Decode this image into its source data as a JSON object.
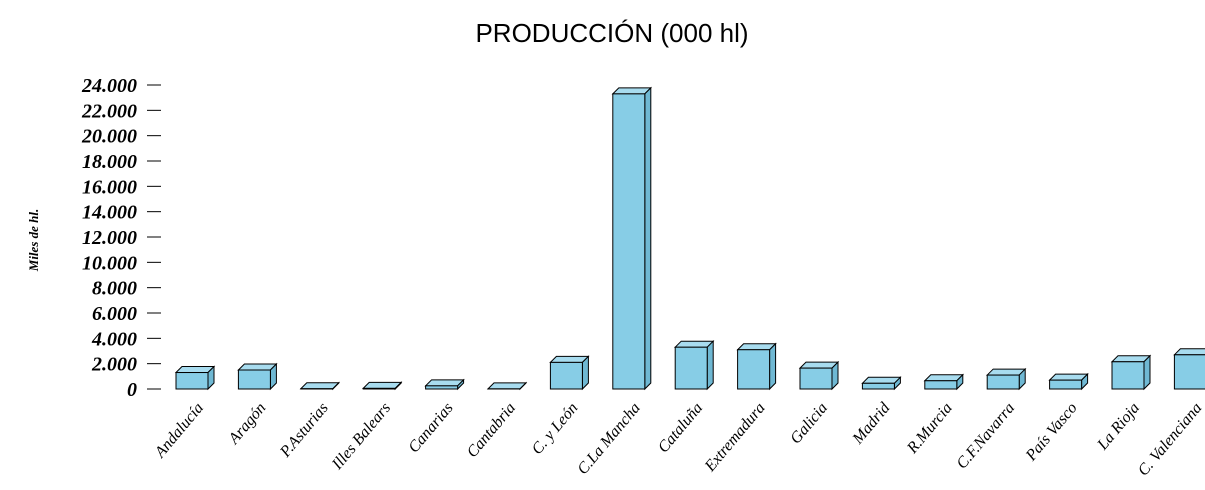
{
  "chart_data": {
    "type": "bar",
    "title": "PRODUCCIÓN (000 hl)",
    "xlabel": "",
    "ylabel": "Miles de hl.",
    "ylim": [
      0,
      24000
    ],
    "grid": false,
    "bar_color": "#87cde6",
    "categories": [
      "Andalucía",
      "Aragón",
      "P.Asturias",
      "Illes Balears",
      "Canarias",
      "Cantabria",
      "C. y León",
      "C.La Mancha",
      "Cataluña",
      "Extremadura",
      "Galicia",
      "Madrid",
      "R.Murcia",
      "C.F.Navarra",
      "País Vasco",
      "La Rioja",
      "C. Valenciana"
    ],
    "values": [
      1300,
      1500,
      20,
      50,
      250,
      10,
      2100,
      23300,
      3300,
      3100,
      1650,
      450,
      650,
      1100,
      700,
      2150,
      2700
    ],
    "yticks": [
      {
        "value": 0,
        "label": "0"
      },
      {
        "value": 2000,
        "label": "2.000"
      },
      {
        "value": 4000,
        "label": "4.000"
      },
      {
        "value": 6000,
        "label": "6.000"
      },
      {
        "value": 8000,
        "label": "8.000"
      },
      {
        "value": 10000,
        "label": "10.000"
      },
      {
        "value": 12000,
        "label": "12.000"
      },
      {
        "value": 14000,
        "label": "14.000"
      },
      {
        "value": 16000,
        "label": "16.000"
      },
      {
        "value": 18000,
        "label": "18.000"
      },
      {
        "value": 20000,
        "label": "20.000"
      },
      {
        "value": 22000,
        "label": "22.000"
      },
      {
        "value": 24000,
        "label": "24.000"
      }
    ]
  }
}
